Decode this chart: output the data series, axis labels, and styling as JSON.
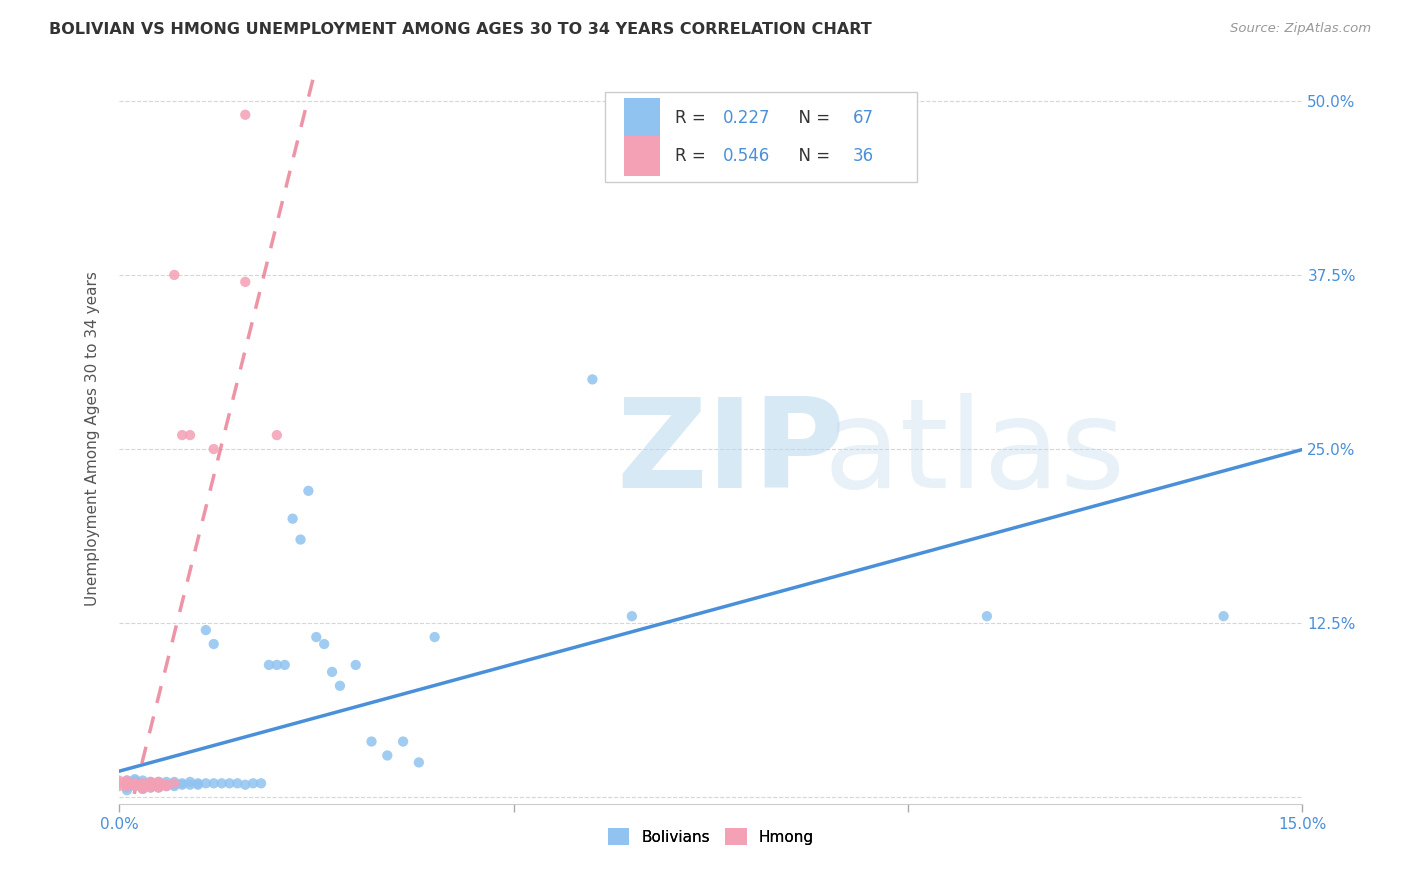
{
  "title": "BOLIVIAN VS HMONG UNEMPLOYMENT AMONG AGES 30 TO 34 YEARS CORRELATION CHART",
  "source": "Source: ZipAtlas.com",
  "ylabel": "Unemployment Among Ages 30 to 34 years",
  "xlim": [
    0.0,
    0.15
  ],
  "ylim": [
    -0.005,
    0.52
  ],
  "xticks": [
    0.0,
    0.05,
    0.1,
    0.15
  ],
  "xtick_labels_ends": [
    "0.0%",
    "15.0%"
  ],
  "yticks": [
    0.0,
    0.125,
    0.25,
    0.375,
    0.5
  ],
  "ytick_labels": [
    "",
    "12.5%",
    "25.0%",
    "37.5%",
    "50.0%"
  ],
  "bolivians_R": 0.227,
  "bolivians_N": 67,
  "hmong_R": 0.546,
  "hmong_N": 36,
  "bolivians_color": "#91c3f0",
  "hmong_color": "#f4a0b5",
  "trendline_bolivians_color": "#4a90d9",
  "trendline_hmong_color": "#e8708a",
  "legend_label_1": "Bolivians",
  "legend_label_2": "Hmong",
  "bolivians_x": [
    0.001,
    0.001,
    0.001,
    0.001,
    0.001,
    0.001,
    0.001,
    0.002,
    0.002,
    0.002,
    0.002,
    0.002,
    0.003,
    0.003,
    0.003,
    0.003,
    0.003,
    0.004,
    0.004,
    0.004,
    0.004,
    0.005,
    0.005,
    0.005,
    0.005,
    0.006,
    0.006,
    0.006,
    0.007,
    0.007,
    0.007,
    0.008,
    0.008,
    0.009,
    0.009,
    0.01,
    0.01,
    0.011,
    0.011,
    0.012,
    0.012,
    0.013,
    0.014,
    0.015,
    0.016,
    0.017,
    0.018,
    0.019,
    0.02,
    0.021,
    0.022,
    0.023,
    0.024,
    0.025,
    0.026,
    0.027,
    0.028,
    0.03,
    0.032,
    0.034,
    0.036,
    0.038,
    0.04,
    0.06,
    0.065,
    0.11,
    0.14
  ],
  "bolivians_y": [
    0.005,
    0.007,
    0.01,
    0.01,
    0.01,
    0.01,
    0.012,
    0.008,
    0.009,
    0.01,
    0.012,
    0.013,
    0.006,
    0.008,
    0.009,
    0.01,
    0.012,
    0.007,
    0.009,
    0.01,
    0.011,
    0.007,
    0.008,
    0.01,
    0.011,
    0.008,
    0.009,
    0.011,
    0.008,
    0.009,
    0.011,
    0.009,
    0.01,
    0.009,
    0.011,
    0.009,
    0.01,
    0.01,
    0.12,
    0.01,
    0.11,
    0.01,
    0.01,
    0.01,
    0.009,
    0.01,
    0.01,
    0.095,
    0.095,
    0.095,
    0.2,
    0.185,
    0.22,
    0.115,
    0.11,
    0.09,
    0.08,
    0.095,
    0.04,
    0.03,
    0.04,
    0.025,
    0.115,
    0.3,
    0.13,
    0.13,
    0.13
  ],
  "hmong_x": [
    0.0,
    0.0,
    0.0,
    0.0,
    0.001,
    0.001,
    0.001,
    0.001,
    0.002,
    0.002,
    0.002,
    0.003,
    0.003,
    0.003,
    0.003,
    0.003,
    0.004,
    0.004,
    0.004,
    0.004,
    0.004,
    0.005,
    0.005,
    0.005,
    0.005,
    0.005,
    0.006,
    0.006,
    0.007,
    0.007,
    0.008,
    0.009,
    0.012,
    0.016,
    0.016,
    0.02
  ],
  "hmong_y": [
    0.008,
    0.01,
    0.01,
    0.012,
    0.008,
    0.009,
    0.01,
    0.012,
    0.008,
    0.009,
    0.01,
    0.006,
    0.007,
    0.008,
    0.009,
    0.01,
    0.007,
    0.008,
    0.009,
    0.01,
    0.011,
    0.007,
    0.008,
    0.009,
    0.01,
    0.011,
    0.008,
    0.009,
    0.01,
    0.375,
    0.26,
    0.26,
    0.25,
    0.49,
    0.37,
    0.26
  ]
}
